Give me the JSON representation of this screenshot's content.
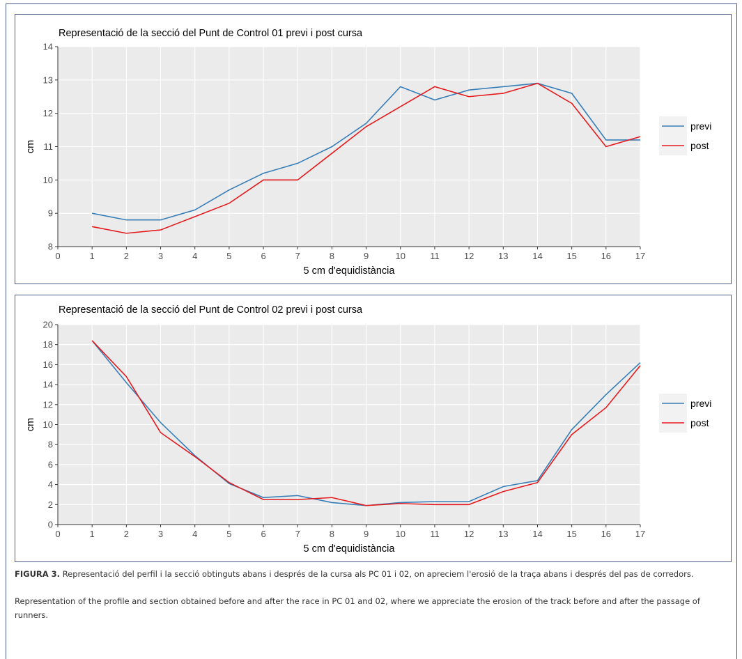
{
  "chart_data": [
    {
      "type": "line",
      "title": "Representació de la secció del Punt de Control 01 previ i post cursa",
      "xlabel": "5 cm d'equidistància",
      "ylabel": "cm",
      "x": [
        1,
        2,
        3,
        4,
        5,
        6,
        7,
        8,
        9,
        10,
        11,
        12,
        13,
        14,
        15,
        16,
        17
      ],
      "series": [
        {
          "name": "previ",
          "color": "#377eb8",
          "values": [
            9.0,
            8.8,
            8.8,
            9.1,
            9.7,
            10.2,
            10.5,
            11.0,
            11.7,
            12.8,
            12.4,
            12.7,
            12.8,
            12.9,
            12.6,
            11.2,
            11.2
          ]
        },
        {
          "name": "post",
          "color": "#e41a1c",
          "values": [
            8.6,
            8.4,
            8.5,
            8.9,
            9.3,
            10.0,
            10.0,
            10.8,
            11.6,
            12.2,
            12.8,
            12.5,
            12.6,
            12.9,
            12.3,
            11.0,
            11.3
          ]
        }
      ],
      "xlim": [
        0,
        17
      ],
      "ylim": [
        8,
        14
      ],
      "xticks": [
        0,
        1,
        2,
        3,
        4,
        5,
        6,
        7,
        8,
        9,
        10,
        11,
        12,
        13,
        14,
        15,
        16,
        17
      ],
      "yticks": [
        8,
        9,
        10,
        11,
        12,
        13,
        14
      ],
      "grid": true,
      "legend": "right"
    },
    {
      "type": "line",
      "title": "Representació de la secció del Punt de Control 02 previ i post cursa",
      "xlabel": "5 cm d'equidistància",
      "ylabel": "cm",
      "x": [
        1,
        2,
        3,
        4,
        5,
        6,
        7,
        8,
        9,
        10,
        11,
        12,
        13,
        14,
        15,
        16,
        17
      ],
      "series": [
        {
          "name": "previ",
          "color": "#377eb8",
          "values": [
            18.4,
            14.2,
            10.2,
            6.9,
            4.1,
            2.7,
            2.9,
            2.2,
            1.9,
            2.2,
            2.3,
            2.3,
            3.8,
            4.4,
            9.5,
            13.0,
            16.2
          ]
        },
        {
          "name": "post",
          "color": "#e41a1c",
          "values": [
            18.4,
            14.8,
            9.2,
            6.8,
            4.2,
            2.5,
            2.5,
            2.7,
            1.9,
            2.1,
            2.0,
            2.0,
            3.3,
            4.2,
            9.0,
            11.7,
            15.9
          ]
        }
      ],
      "xlim": [
        0,
        17
      ],
      "ylim": [
        0,
        20
      ],
      "xticks": [
        0,
        1,
        2,
        3,
        4,
        5,
        6,
        7,
        8,
        9,
        10,
        11,
        12,
        13,
        14,
        15,
        16,
        17
      ],
      "yticks": [
        0,
        2,
        4,
        6,
        8,
        10,
        12,
        14,
        16,
        18,
        20
      ],
      "grid": true,
      "legend": "right"
    }
  ],
  "caption": {
    "label": "FIGURA 3.",
    "text": "Representació del perfil i la secció obtinguts abans i després de la cursa als PC 01 i 02, on apreciem l'erosió de la traça abans i després del pas de corredors.",
    "english": "Representation of the profile and section obtained before and after the race in PC 01 and 02, where we appreciate the erosion of the track before and after the passage of runners."
  }
}
